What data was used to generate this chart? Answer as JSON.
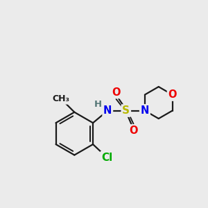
{
  "background_color": "#ebebeb",
  "bond_color": "#1a1a1a",
  "bond_width": 1.6,
  "atom_colors": {
    "S": "#b8b800",
    "N": "#0000ee",
    "O": "#ee0000",
    "Cl": "#00aa00",
    "H": "#557777",
    "C": "#1a1a1a"
  },
  "font_size_atoms": 10.5,
  "figsize": [
    3.0,
    3.0
  ],
  "dpi": 100
}
